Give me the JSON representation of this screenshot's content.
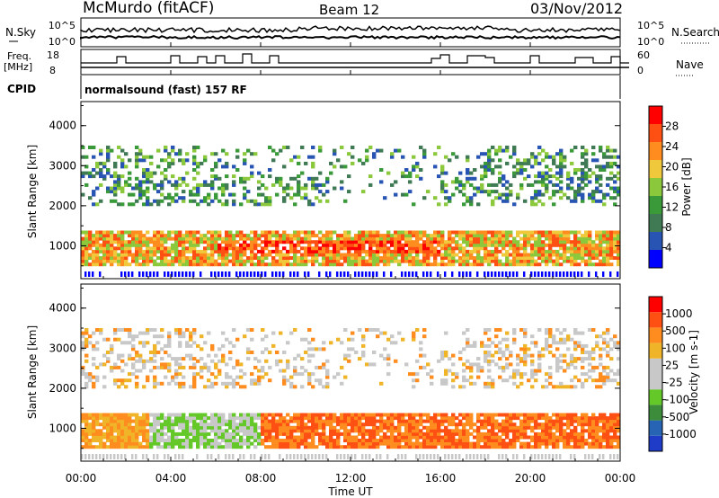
{
  "header": {
    "station": "McMurdo (fitACF)",
    "beam": "Beam 12",
    "date": "03/Nov/2012"
  },
  "top_panels": {
    "nsky_label": "N.Sky",
    "nsky_ticks": [
      "10^5",
      "10^0"
    ],
    "nsearch_label": "N.Search",
    "nsearch_ticks": [
      "10^5",
      "10^0"
    ],
    "freq_label_1": "Freq.",
    "freq_label_2": "[MHz]",
    "freq_ticks": [
      "18",
      "8"
    ],
    "nave_label": "Nave",
    "nave_ticks": [
      "60",
      "0"
    ],
    "cpid_label": "CPID",
    "cpid_text": "normalsound (fast) 157 RF"
  },
  "colors": {
    "power_scale": [
      "#0000ff",
      "#2855b4",
      "#3f7a55",
      "#3a9a3a",
      "#8cc83c",
      "#f0c83c",
      "#ff8c1e",
      "#ff5014",
      "#ff0000"
    ],
    "velocity_scale": [
      "#1e3cc8",
      "#2864b4",
      "#3c8c3c",
      "#64c828",
      "#c8c8c8",
      "#c8c8c8",
      "#f0b428",
      "#ff8c1e",
      "#ff5014",
      "#ff0000"
    ]
  },
  "chart_data": [
    {
      "type": "heatmap",
      "title": "",
      "xlabel": "",
      "ylabel": "Slant Range [km]",
      "y_ticks": [
        "4000",
        "3000",
        "2000",
        "1000"
      ],
      "ylim": [
        180,
        4600
      ],
      "colorbar_label": "Power [dB]",
      "colorbar_ticks": [
        "28",
        "24",
        "20",
        "16",
        "12",
        "8",
        "4"
      ],
      "colorbar_range": [
        0,
        32
      ],
      "echo_bands": [
        {
          "range_km": [
            500,
            1350
          ],
          "strength": "strong"
        },
        {
          "range_km": [
            2000,
            2700
          ],
          "strength": "moderate"
        },
        {
          "range_km": [
            2700,
            3500
          ],
          "strength": "moderate"
        }
      ]
    },
    {
      "type": "heatmap",
      "title": "",
      "xlabel": "Time UT",
      "ylabel": "Slant Range [km]",
      "y_ticks": [
        "4000",
        "3000",
        "2000",
        "1000"
      ],
      "x_ticks": [
        "00:00",
        "04:00",
        "08:00",
        "12:00",
        "16:00",
        "20:00",
        "00:00"
      ],
      "ylim": [
        180,
        4600
      ],
      "colorbar_label": "Velocity [m s-1]",
      "colorbar_ticks": [
        "1000",
        "500",
        "100",
        "25",
        "-25",
        "-100",
        "-500",
        "-1000"
      ],
      "echo_bands": [
        {
          "range_km": [
            500,
            1350
          ],
          "strength": "strong"
        },
        {
          "range_km": [
            2000,
            2700
          ],
          "strength": "moderate"
        },
        {
          "range_km": [
            2700,
            3500
          ],
          "strength": "moderate"
        }
      ]
    }
  ]
}
